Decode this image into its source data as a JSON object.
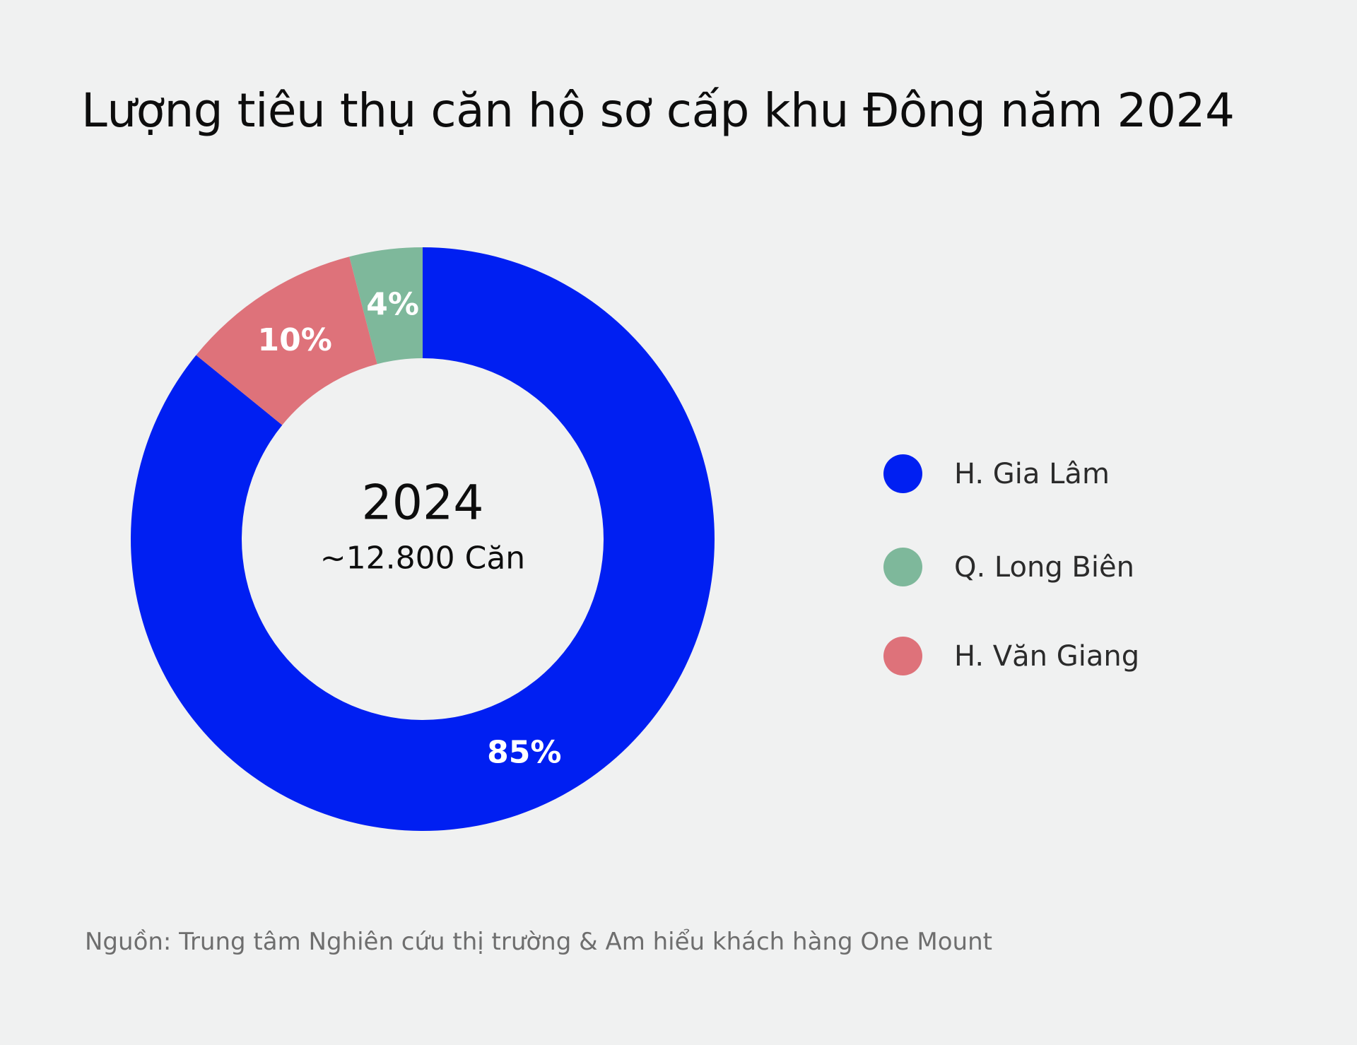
{
  "title": "Lượng tiêu thụ căn hộ sơ cấp khu Đông năm 2024",
  "source": "Nguồn: Trung tâm Nghiên cứu thị trường & Am hiểu khách hàng One Mount",
  "center": {
    "year": "2024",
    "total": "~12.800 Căn"
  },
  "chart_data": {
    "type": "pie",
    "title": "Lượng tiêu thụ căn hộ sơ cấp khu Đông năm 2024",
    "categories": [
      "H. Gia Lâm",
      "Q. Long Biên",
      "H. Văn Giang"
    ],
    "values": [
      85,
      4,
      10
    ],
    "labels": [
      "85%",
      "4%",
      "10%"
    ],
    "colors": [
      "#001ff2",
      "#7eb89b",
      "#de727a"
    ],
    "legend": "right",
    "donut": true
  }
}
